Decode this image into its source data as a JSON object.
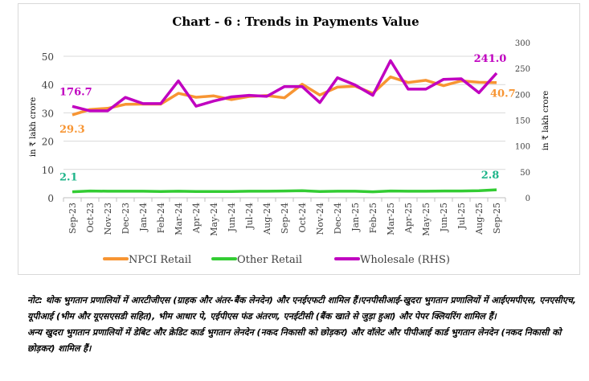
{
  "chart_data": {
    "type": "line",
    "title": "Chart - 6 : Trends in Payments Value",
    "ylabel": "in ₹ lakh crore",
    "y2label": "in ₹ lakh crore",
    "ylim": [
      0,
      50
    ],
    "y2lim": [
      0,
      300
    ],
    "yticks": [
      0,
      10,
      20,
      30,
      40,
      50
    ],
    "y2ticks": [
      0,
      50,
      100,
      150,
      200,
      250,
      300
    ],
    "grid": true,
    "legend_position": "bottom",
    "categories": [
      "Sep-23",
      "Oct-23",
      "Nov-23",
      "Dec-23",
      "Jan-24",
      "Feb-24",
      "Mar-24",
      "Apr-24",
      "May-24",
      "Jun-24",
      "Jul-24",
      "Aug-24",
      "Sep-24",
      "Oct-24",
      "Nov-24",
      "Dec-24",
      "Jan-25",
      "Feb-25",
      "Mar-25",
      "Apr-25",
      "May-25",
      "Jun-25",
      "Jul-25",
      "Aug-25",
      "Sep-25"
    ],
    "series": [
      {
        "name": "NPCI Retail",
        "axis": "left",
        "color": "#f79533",
        "values": [
          29.3,
          31.2,
          31.6,
          33.0,
          33.1,
          33.1,
          36.9,
          35.5,
          36.0,
          34.7,
          35.8,
          36.1,
          35.3,
          40.1,
          36.3,
          39.1,
          39.4,
          36.9,
          42.7,
          40.7,
          41.5,
          39.6,
          41.3,
          40.8,
          40.7
        ],
        "labels": {
          "first": "29.3",
          "last": "40.7"
        }
      },
      {
        "name": "Other Retail",
        "axis": "left",
        "color": "#33cc33",
        "label_color": "#1fb58a",
        "values": [
          2.1,
          2.4,
          2.3,
          2.3,
          2.3,
          2.2,
          2.3,
          2.2,
          2.2,
          2.2,
          2.3,
          2.3,
          2.4,
          2.5,
          2.2,
          2.3,
          2.3,
          2.1,
          2.4,
          2.3,
          2.3,
          2.4,
          2.4,
          2.5,
          2.8
        ],
        "labels": {
          "first": "2.1",
          "last": "2.8"
        }
      },
      {
        "name": "Wholesale (RHS)",
        "axis": "right",
        "color": "#c000c0",
        "values": [
          176.7,
          168,
          168,
          194,
          182,
          182,
          226,
          177,
          187,
          195,
          198,
          196,
          215,
          215,
          184,
          232,
          218,
          198,
          265,
          210,
          210,
          229,
          230,
          203,
          241.0
        ],
        "labels": {
          "first": "176.7",
          "last": "241.0"
        }
      }
    ]
  },
  "note": {
    "line1": "नोट: थोक भुगतान प्रणालियों में आरटीजीएस (ग्राहक और अंतर-बैंक लेनदेन) और एनईएफटी शामिल हैं।एनपीसीआई-खुदरा भुगतान प्रणालियों में आईएमपीएस, एनएसीएच, यूपीआई (भीम और यूएसएसडी सहित), भीम आधार पे, एईपीएस फंड अंतरण, एनईटीसी (बैंक खाते से जुड़ा हुआ) और पेपर क्लियरिंग शामिल हैं।",
    "line2": "अन्य खुदरा भुगतान प्रणालियों में डेबिट और क्रेडिट कार्ड भुगतान लेनदेन (नकद निकासी को छोड़कर) और वॉलेट और पीपीआई कार्ड भुगतान लेनदेन (नकद निकासी को छोड़कर) शामिल हैं।"
  }
}
